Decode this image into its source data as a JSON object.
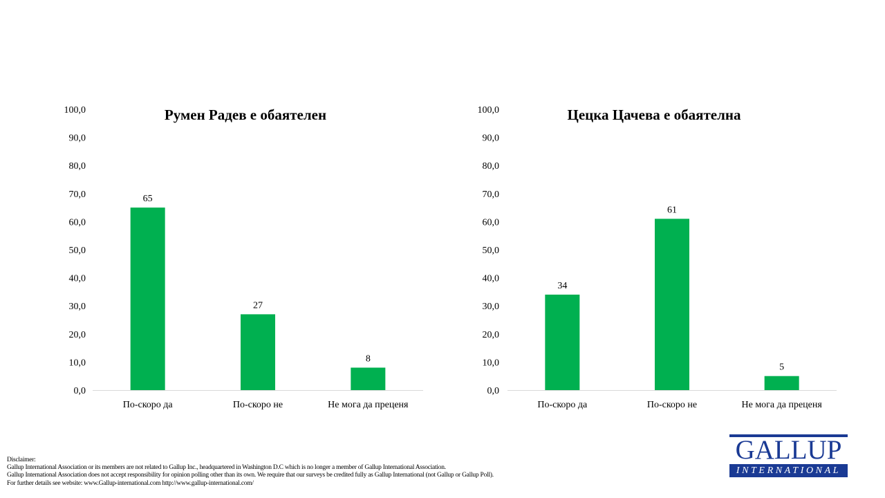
{
  "chart_data": [
    {
      "type": "bar",
      "title": "Румен Радев е обаятелен",
      "categories": [
        "По-скоро да",
        "По-скоро не",
        "Не мога да преценя"
      ],
      "values": [
        65,
        27,
        8
      ],
      "value_labels": [
        "65",
        "27",
        "8"
      ],
      "ylim": [
        0,
        100
      ],
      "yticks": [
        "0,0",
        "10,0",
        "20,0",
        "30,0",
        "40,0",
        "50,0",
        "60,0",
        "70,0",
        "80,0",
        "90,0",
        "100,0"
      ],
      "grid": false,
      "bar_color": "#00b050"
    },
    {
      "type": "bar",
      "title": "Цецка Цачева е обаятелна",
      "categories": [
        "По-скоро да",
        "По-скоро не",
        "Не мога да преценя"
      ],
      "values": [
        34,
        61,
        5
      ],
      "value_labels": [
        "34",
        "61",
        "5"
      ],
      "ylim": [
        0,
        100
      ],
      "yticks": [
        "0,0",
        "10,0",
        "20,0",
        "30,0",
        "40,0",
        "50,0",
        "60,0",
        "70,0",
        "80,0",
        "90,0",
        "100,0"
      ],
      "grid": false,
      "bar_color": "#00b050"
    }
  ],
  "disclaimer": {
    "heading": "Disclaimer:",
    "line1": "Gallup International Association or its members are not related to Gallup Inc., headquartered in Washington D.C which is no longer a member of Gallup International Association.",
    "line2": "Gallup International Association does not accept responsibility for opinion polling other than its own. We require that our surveys be credited fully as Gallup International (not Gallup or Gallup Poll).",
    "line3": "For further details see website: www.Gallup-international.com http://www.gallup-international.com/"
  },
  "logo": {
    "word": "GALLUP",
    "subword": "INTERNATIONAL",
    "color": "#1a3a94"
  }
}
